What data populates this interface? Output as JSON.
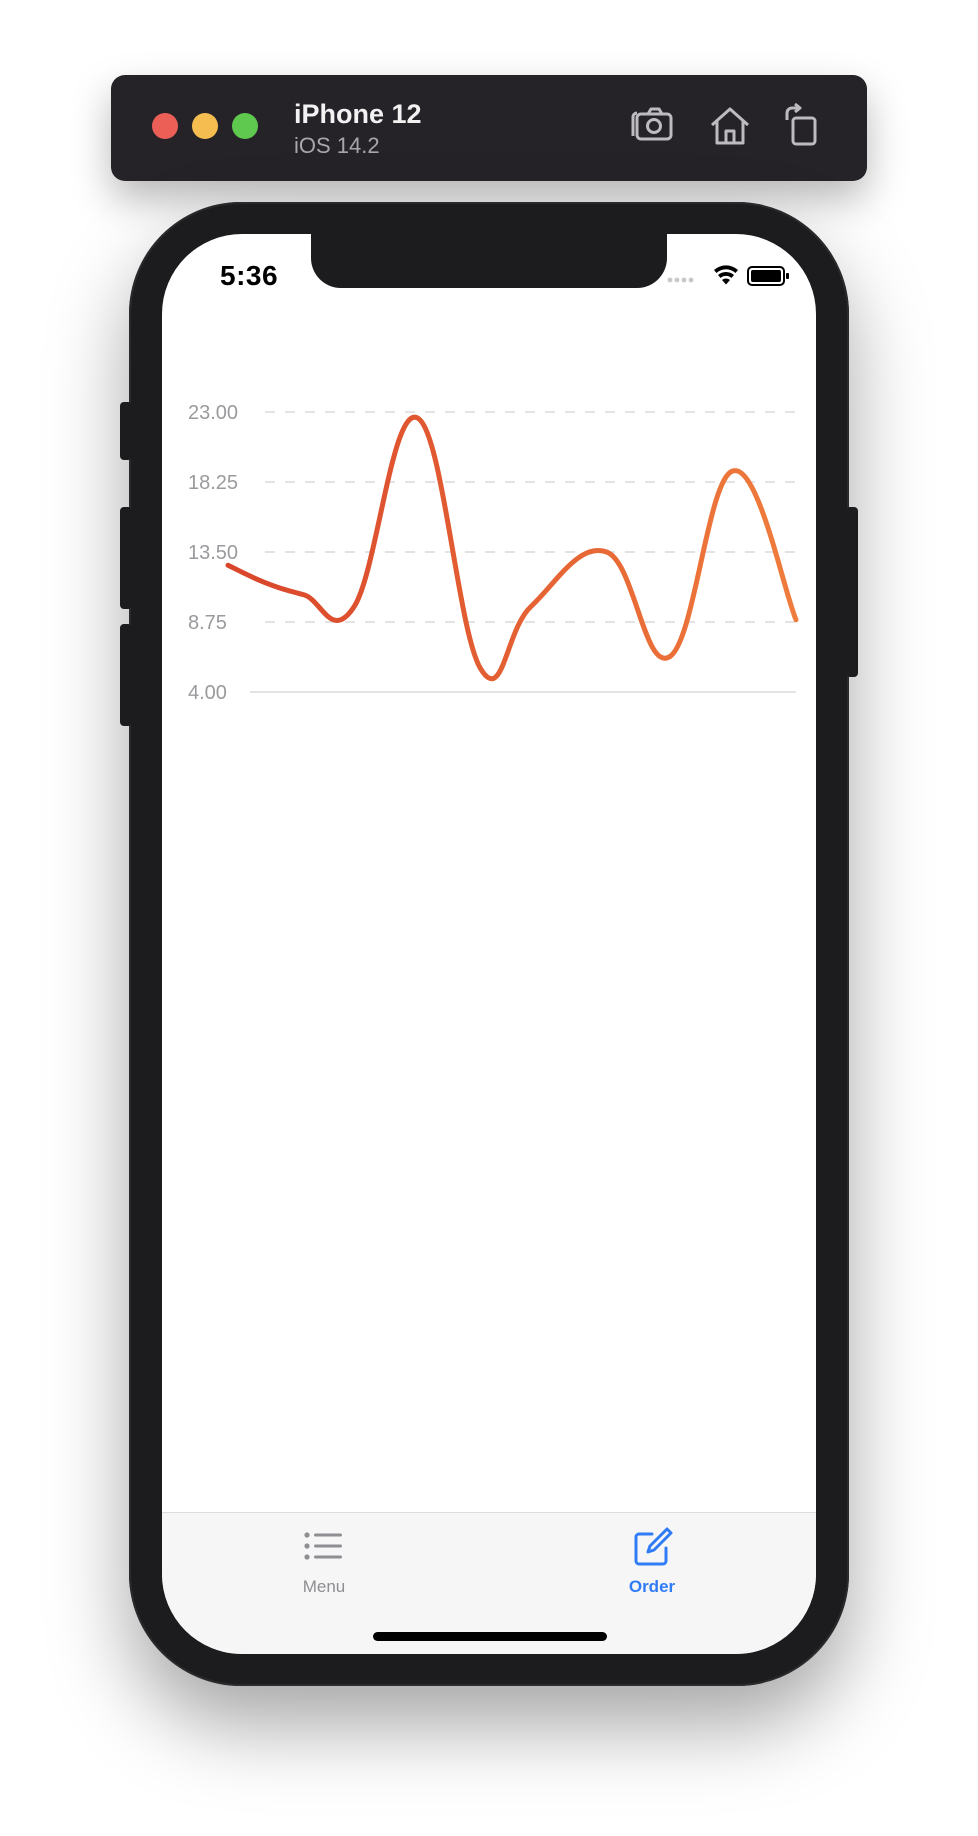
{
  "simulator": {
    "device_name": "iPhone 12",
    "os_version": "iOS 14.2",
    "traffic_colors": {
      "close": "#ec5f57",
      "minimize": "#f5bd4f",
      "zoom": "#5fc84f"
    },
    "icons": [
      "screenshot-icon",
      "home-icon",
      "rotate-icon"
    ]
  },
  "status_bar": {
    "time": "5:36",
    "icons": [
      "signal-dots-icon",
      "wifi-icon",
      "battery-icon"
    ]
  },
  "chart_data": {
    "type": "line",
    "y_ticks": [
      "23.00",
      "18.25",
      "13.50",
      "8.75",
      "4.00"
    ],
    "ylim": [
      4.0,
      23.0
    ],
    "grid": true,
    "series": [
      {
        "color_start": "#d9452b",
        "color_end": "#ef7c3c",
        "points": [
          {
            "x": 0,
            "y": 12.6
          },
          {
            "x": 0.6,
            "y": 11.4
          },
          {
            "x": 1.2,
            "y": 10.6
          },
          {
            "x": 2.0,
            "y": 9.8
          },
          {
            "x": 3.0,
            "y": 22.6
          },
          {
            "x": 4.0,
            "y": 5.6
          },
          {
            "x": 4.8,
            "y": 9.8
          },
          {
            "x": 6.0,
            "y": 13.5
          },
          {
            "x": 7.0,
            "y": 6.4
          },
          {
            "x": 8.0,
            "y": 19.0
          },
          {
            "x": 9.0,
            "y": 8.9
          }
        ]
      }
    ]
  },
  "tab_bar": {
    "tabs": [
      {
        "label": "Menu",
        "icon": "list-icon",
        "selected": false
      },
      {
        "label": "Order",
        "icon": "compose-icon",
        "selected": true
      }
    ],
    "accent_color": "#2f7cf6",
    "inactive_color": "#8e8e93"
  }
}
